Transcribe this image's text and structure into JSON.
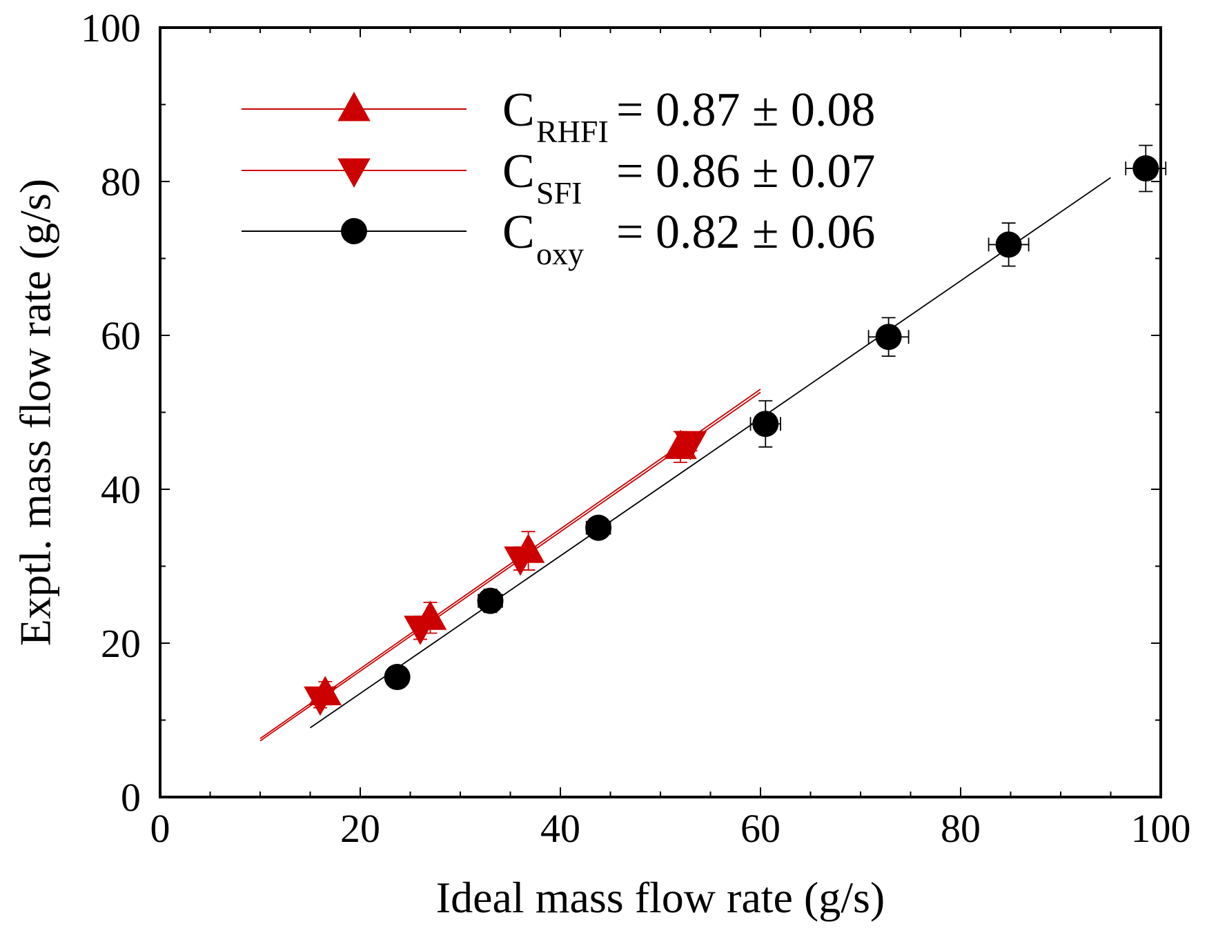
{
  "chart_data": {
    "type": "scatter",
    "title": "",
    "xlabel": "Ideal mass flow rate (g/s)",
    "ylabel": "Exptl. mass flow rate (g/s)",
    "xlim": [
      0,
      100
    ],
    "ylim": [
      0,
      100
    ],
    "x_ticks": [
      0,
      20,
      40,
      60,
      80,
      100
    ],
    "y_ticks": [
      0,
      20,
      40,
      60,
      80,
      100
    ],
    "x_tick_labels": [
      "0",
      "20",
      "40",
      "60",
      "80",
      "100"
    ],
    "y_tick_labels": [
      "0",
      "20",
      "40",
      "60",
      "80",
      "100"
    ],
    "grid": false,
    "legend_position": "top-left",
    "series": [
      {
        "name": "RHFI",
        "legend_main": "C",
        "legend_sub": "RHFI",
        "legend_value": "= 0.87 ± 0.08",
        "marker": "triangle-up",
        "color": "#cc0000",
        "points": [
          {
            "x": 16.5,
            "y": 13.5,
            "yerr": 1.5
          },
          {
            "x": 27.0,
            "y": 23.3,
            "yerr": 2.0
          },
          {
            "x": 36.8,
            "y": 32.0,
            "yerr": 2.5
          },
          {
            "x": 52.0,
            "y": 45.5,
            "yerr": 2.0
          }
        ],
        "fit": {
          "x": [
            10,
            60
          ],
          "y": [
            7.6,
            53.0
          ]
        }
      },
      {
        "name": "SFI",
        "legend_main": "C",
        "legend_sub": "SFI",
        "legend_value": "= 0.86 ± 0.07",
        "marker": "triangle-down",
        "color": "#cc0000",
        "points": [
          {
            "x": 16.0,
            "y": 12.8,
            "yerr": 1.2
          },
          {
            "x": 26.0,
            "y": 22.0,
            "yerr": 1.5
          },
          {
            "x": 36.0,
            "y": 31.0,
            "yerr": 1.5
          },
          {
            "x": 53.0,
            "y": 46.0,
            "yerr": 1.0
          }
        ],
        "fit": {
          "x": [
            10,
            60
          ],
          "y": [
            7.3,
            52.6
          ]
        }
      },
      {
        "name": "oxy",
        "legend_main": "C",
        "legend_sub": "oxy",
        "legend_value": "= 0.82 ± 0.06",
        "marker": "circle",
        "color": "#000000",
        "points": [
          {
            "x": 23.7,
            "y": 15.6,
            "xerr": 1.0,
            "yerr": 1.0
          },
          {
            "x": 33.0,
            "y": 25.5,
            "xerr": 1.2,
            "yerr": 1.5
          },
          {
            "x": 43.8,
            "y": 35.0,
            "xerr": 1.2,
            "yerr": 1.0
          },
          {
            "x": 60.5,
            "y": 48.5,
            "xerr": 1.5,
            "yerr": 3.0
          },
          {
            "x": 72.8,
            "y": 59.8,
            "xerr": 2.0,
            "yerr": 2.5
          },
          {
            "x": 84.8,
            "y": 71.8,
            "xerr": 2.0,
            "yerr": 2.8
          },
          {
            "x": 98.5,
            "y": 81.7,
            "xerr": 2.0,
            "yerr": 3.0
          }
        ],
        "fit": {
          "x": [
            15,
            95
          ],
          "y": [
            9.0,
            80.5
          ]
        }
      }
    ]
  }
}
